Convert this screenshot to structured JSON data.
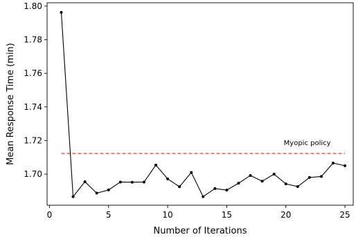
{
  "chart_data": {
    "type": "line",
    "xlabel": "Number of Iterations",
    "ylabel": "Mean Response Time (min)",
    "xlim": [
      -0.2,
      25.7
    ],
    "ylim": [
      1.6815,
      1.802
    ],
    "x_ticks": [
      0,
      5,
      10,
      15,
      20,
      25
    ],
    "y_ticks": [
      1.7,
      1.72,
      1.74,
      1.76,
      1.78,
      1.8
    ],
    "y_tick_labels": [
      "1.70",
      "1.72",
      "1.74",
      "1.76",
      "1.78",
      "1.80"
    ],
    "grid": false,
    "series": [
      {
        "x": [
          1,
          2,
          3,
          4,
          5,
          6,
          7,
          8,
          9,
          10,
          11,
          12,
          13,
          14,
          15,
          16,
          17,
          18,
          19,
          20,
          21,
          22,
          23,
          24,
          25
        ],
        "y": [
          1.7963,
          1.6866,
          1.6955,
          1.6887,
          1.6906,
          1.6953,
          1.6952,
          1.6953,
          1.7054,
          1.6972,
          1.6925,
          1.701,
          1.6866,
          1.6914,
          1.6905,
          1.6946,
          1.6992,
          1.6958,
          1.7,
          1.6942,
          1.6926,
          1.698,
          1.6986,
          1.7066,
          1.705
        ],
        "color": "#000000",
        "marker": "dot"
      }
    ],
    "reference_line": {
      "y": 1.7123,
      "x_range": [
        1,
        25
      ],
      "color": "#d62728",
      "style": "dashed",
      "label": "Myopic policy"
    }
  }
}
